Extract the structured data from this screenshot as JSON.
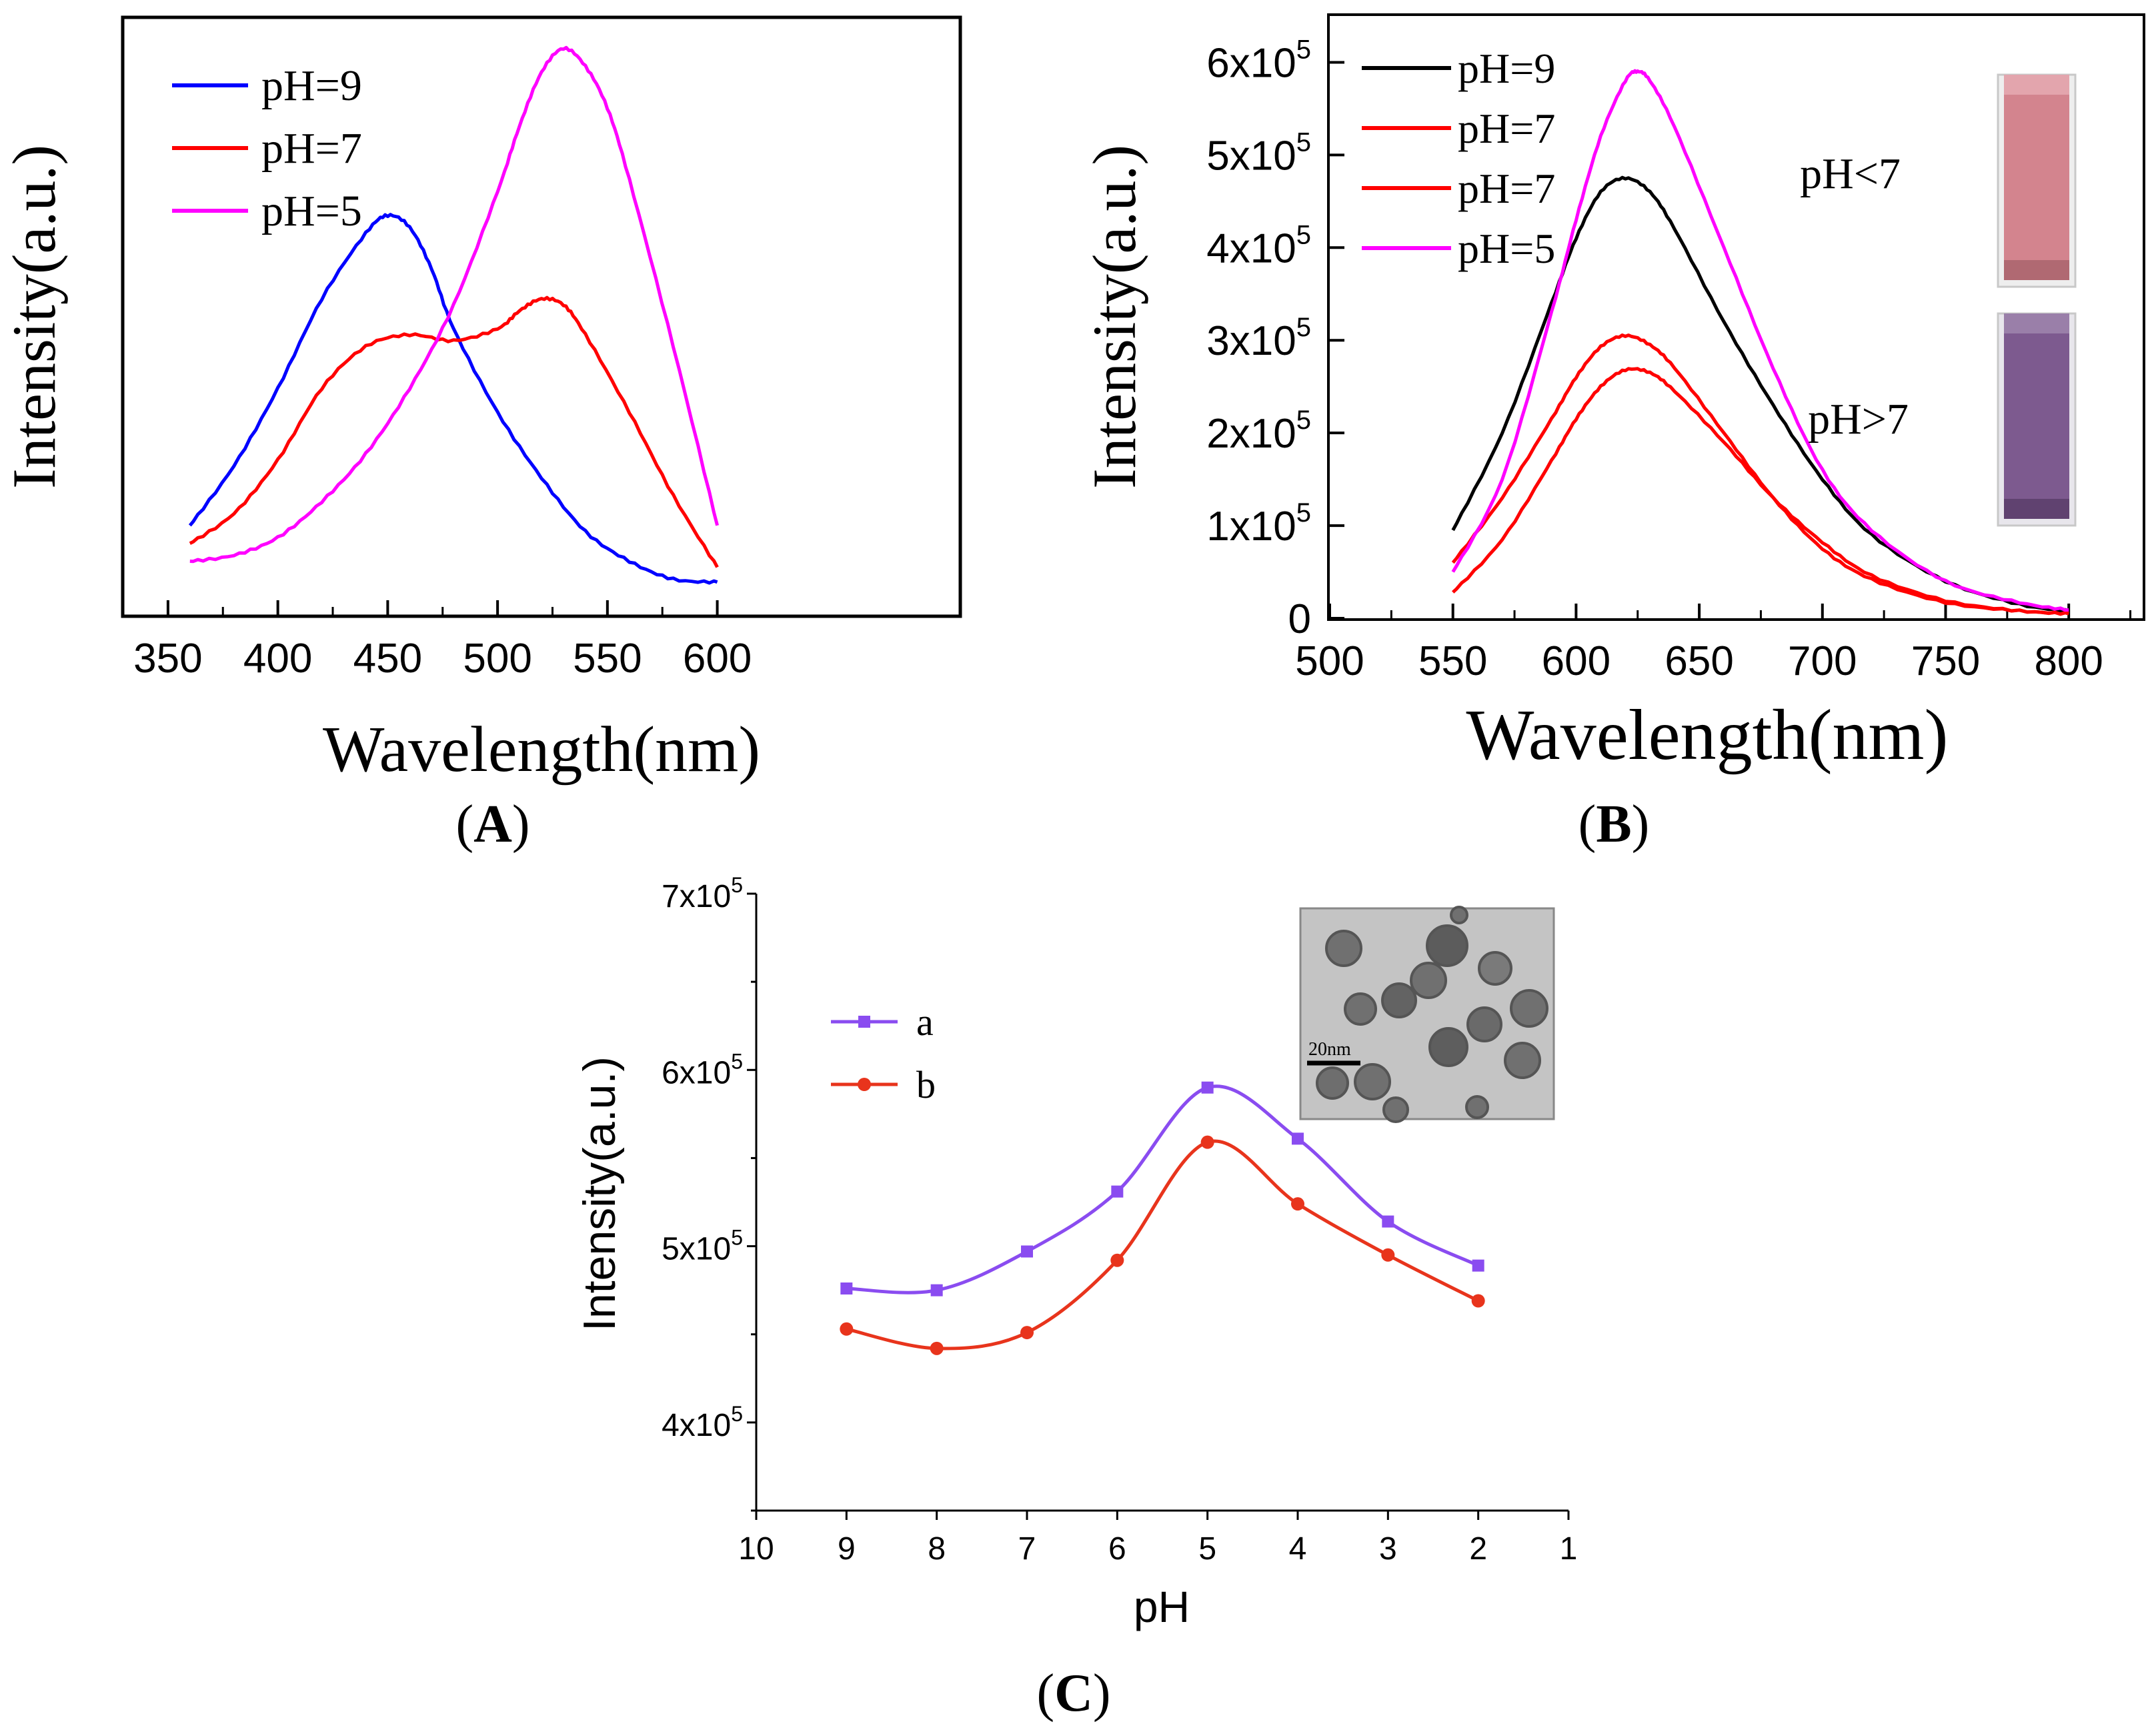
{
  "chart_data": [
    {
      "panel": "A",
      "type": "line",
      "panel_label": "A",
      "xlabel": "Wavelength(nm)",
      "ylabel": "Intensity(a.u.)",
      "xlim": [
        330,
        710
      ],
      "ylim": [
        0,
        1.0
      ],
      "xticks": [
        "350",
        "400",
        "450",
        "500",
        "550",
        "600"
      ],
      "yticks_shown": false,
      "legend": "top-left",
      "series": [
        {
          "name": "pH=9",
          "color": "#0000ff",
          "x": [
            360,
            380,
            400,
            420,
            440,
            450,
            460,
            470,
            480,
            500,
            520,
            540,
            560,
            580,
            600
          ],
          "y": [
            0.15,
            0.25,
            0.38,
            0.53,
            0.64,
            0.67,
            0.65,
            0.58,
            0.48,
            0.34,
            0.23,
            0.14,
            0.09,
            0.06,
            0.055
          ]
        },
        {
          "name": "pH=7",
          "color": "#ff0000",
          "x": [
            360,
            380,
            400,
            420,
            440,
            460,
            480,
            500,
            510,
            520,
            530,
            540,
            560,
            580,
            600
          ],
          "y": [
            0.12,
            0.17,
            0.26,
            0.38,
            0.45,
            0.47,
            0.46,
            0.48,
            0.51,
            0.53,
            0.52,
            0.47,
            0.34,
            0.2,
            0.08
          ]
        },
        {
          "name": "pH=5",
          "color": "#ff00ff",
          "x": [
            360,
            380,
            400,
            420,
            440,
            460,
            480,
            500,
            510,
            520,
            530,
            540,
            550,
            560,
            580,
            600
          ],
          "y": [
            0.09,
            0.1,
            0.13,
            0.19,
            0.27,
            0.38,
            0.52,
            0.71,
            0.82,
            0.91,
            0.95,
            0.92,
            0.85,
            0.73,
            0.45,
            0.15
          ]
        }
      ]
    },
    {
      "panel": "B",
      "type": "line",
      "panel_label": "B",
      "xlabel": "Wavelength(nm)",
      "ylabel": "Intensity(a.u.)",
      "xlim": [
        500,
        830
      ],
      "ylim": [
        0,
        650000
      ],
      "xticks": [
        "500",
        "550",
        "600",
        "650",
        "700",
        "750",
        "800"
      ],
      "yticks": [
        {
          "value": 0,
          "label": "0"
        },
        {
          "value": 100000,
          "mantissa": "1x10",
          "exp": "5"
        },
        {
          "value": 200000,
          "mantissa": "2x10",
          "exp": "5"
        },
        {
          "value": 300000,
          "mantissa": "3x10",
          "exp": "5"
        },
        {
          "value": 400000,
          "mantissa": "4x10",
          "exp": "5"
        },
        {
          "value": 500000,
          "mantissa": "5x10",
          "exp": "5"
        },
        {
          "value": 600000,
          "mantissa": "6x10",
          "exp": "5"
        }
      ],
      "legend": "top-left",
      "series": [
        {
          "name": "pH=9",
          "color": "#000000",
          "x": [
            550,
            570,
            590,
            600,
            610,
            620,
            630,
            640,
            660,
            680,
            700,
            720,
            750,
            780,
            800
          ],
          "y": [
            95000,
            200000,
            340000,
            410000,
            460000,
            475000,
            460000,
            420000,
            320000,
            230000,
            150000,
            90000,
            40000,
            15000,
            8000
          ]
        },
        {
          "name": "pH=7",
          "color": "#ff0000",
          "x": [
            550,
            570,
            590,
            600,
            610,
            620,
            630,
            640,
            660,
            680,
            700,
            720,
            750,
            780,
            800
          ],
          "y": [
            60000,
            130000,
            215000,
            260000,
            293000,
            305000,
            295000,
            270000,
            200000,
            130000,
            75000,
            42000,
            17000,
            8000,
            5000
          ]
        },
        {
          "name": "pH=7",
          "color": "#ff0000",
          "x": [
            550,
            570,
            590,
            600,
            610,
            620,
            630,
            640,
            660,
            680,
            700,
            720,
            750,
            780,
            800
          ],
          "y": [
            28000,
            85000,
            170000,
            215000,
            250000,
            268000,
            265000,
            245000,
            190000,
            130000,
            82000,
            46000,
            19000,
            8000,
            5000
          ]
        },
        {
          "name": "pH=5",
          "color": "#ff00ff",
          "x": [
            550,
            570,
            590,
            600,
            610,
            620,
            625,
            630,
            640,
            660,
            680,
            700,
            720,
            750,
            780,
            800
          ],
          "y": [
            50000,
            150000,
            330000,
            430000,
            520000,
            580000,
            590000,
            580000,
            530000,
            400000,
            270000,
            160000,
            95000,
            40000,
            17000,
            9000
          ]
        }
      ],
      "inset_labels": {
        "top": "pH<7",
        "bottom": "pH>7"
      },
      "colors": {
        "vial_acidic": "#d3848e",
        "vial_basic": "#7d5a8f"
      }
    },
    {
      "panel": "C",
      "type": "line",
      "panel_label": "C",
      "xlabel": "pH",
      "ylabel": "Intensity(a.u.)",
      "xlim": [
        10,
        1
      ],
      "ylim": [
        350000,
        700000
      ],
      "xticks": [
        "10",
        "9",
        "8",
        "7",
        "6",
        "5",
        "4",
        "3",
        "2",
        "1"
      ],
      "yticks": [
        {
          "value": 400000,
          "mantissa": "4x10",
          "exp": "5"
        },
        {
          "value": 500000,
          "mantissa": "5x10",
          "exp": "5"
        },
        {
          "value": 600000,
          "mantissa": "6x10",
          "exp": "5"
        },
        {
          "value": 700000,
          "mantissa": "7x10",
          "exp": "5"
        }
      ],
      "legend": "top-left",
      "series": [
        {
          "name": "a",
          "color": "#8a4cf0",
          "marker": "square",
          "x": [
            9,
            8,
            7,
            6,
            5,
            4,
            3,
            2
          ],
          "y": [
            476000,
            475000,
            497000,
            531000,
            590000,
            561000,
            514000,
            489000
          ]
        },
        {
          "name": "b",
          "color": "#e8341c",
          "marker": "circle",
          "x": [
            9,
            8,
            7,
            6,
            5,
            4,
            3,
            2
          ],
          "y": [
            453000,
            442000,
            451000,
            492000,
            559000,
            524000,
            495000,
            469000
          ]
        }
      ],
      "inset": {
        "scale_bar": "20nm"
      }
    }
  ]
}
